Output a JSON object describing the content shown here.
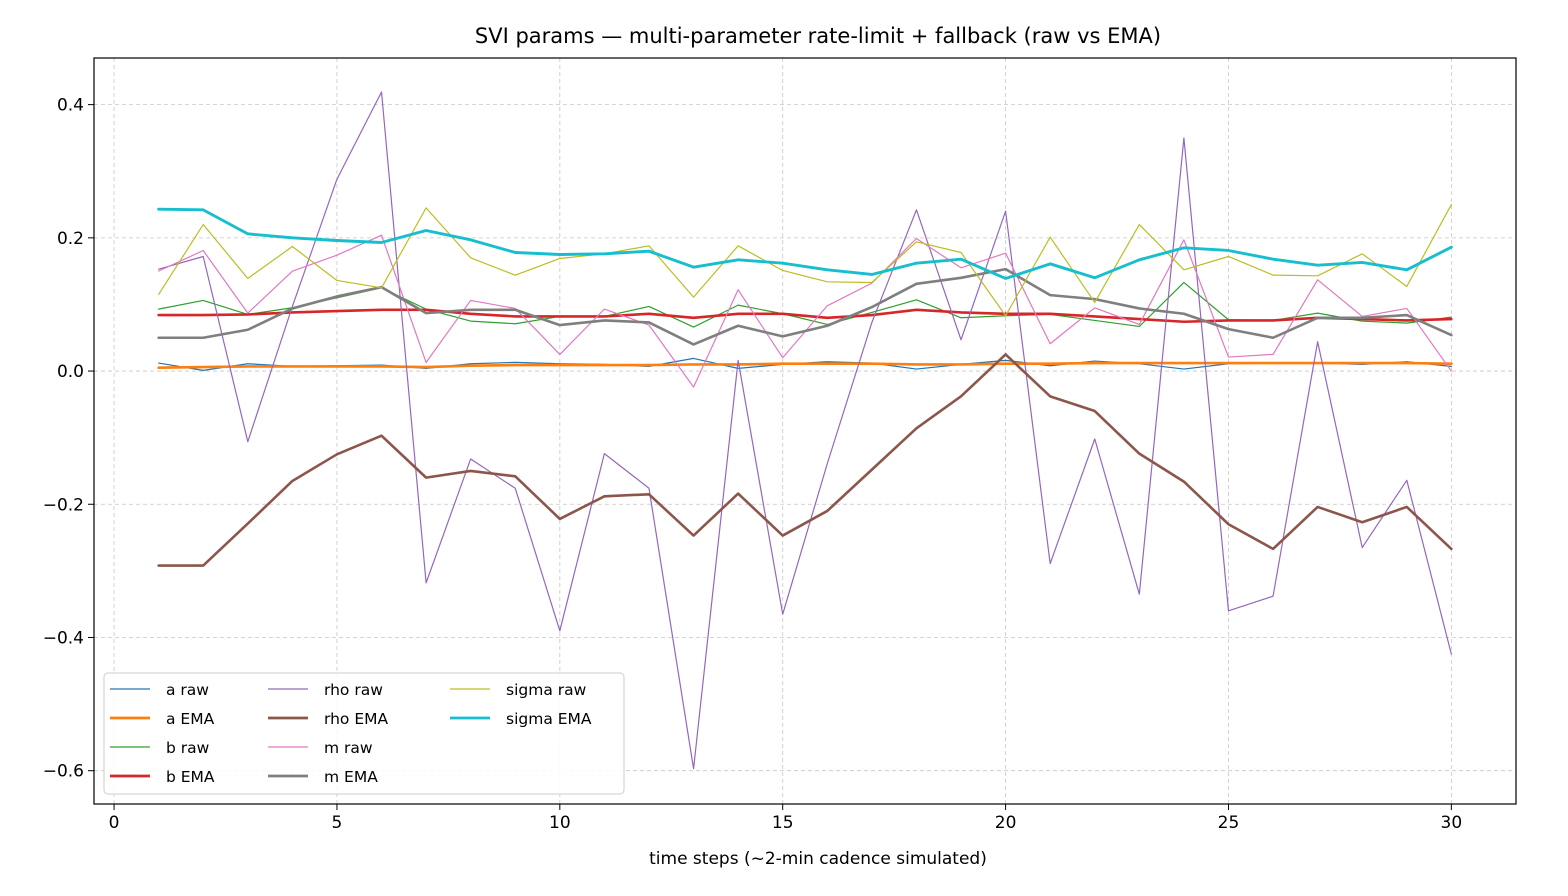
{
  "chart_data": {
    "type": "line",
    "title": "SVI params — multi-parameter rate-limit + fallback (raw vs EMA)",
    "xlabel": "time steps (~2-min cadence simulated)",
    "ylabel": "",
    "xlim": [
      -0.45,
      31.45
    ],
    "ylim": [
      -0.65,
      0.47
    ],
    "xticks": [
      0,
      5,
      10,
      15,
      20,
      25,
      30
    ],
    "yticks": [
      -0.6,
      -0.4,
      -0.2,
      0.0,
      0.2,
      0.4
    ],
    "ytick_labels": [
      "−0.6",
      "−0.4",
      "−0.2",
      "0.0",
      "0.2",
      "0.4"
    ],
    "xtick_labels": [
      "0",
      "5",
      "10",
      "15",
      "20",
      "25",
      "30"
    ],
    "grid": true,
    "legend_position": "lower-left",
    "x": [
      1,
      2,
      3,
      4,
      5,
      6,
      7,
      8,
      9,
      10,
      11,
      12,
      13,
      14,
      15,
      16,
      17,
      18,
      19,
      20,
      21,
      22,
      23,
      24,
      25,
      26,
      27,
      28,
      29,
      30
    ],
    "series": [
      {
        "name": "a raw",
        "color": "#1f77b4",
        "width": 1.2,
        "values": [
          0.012,
          0.001,
          0.011,
          0.007,
          0.008,
          0.009,
          0.004,
          0.011,
          0.013,
          0.011,
          0.01,
          0.007,
          0.019,
          0.004,
          0.01,
          0.014,
          0.012,
          0.003,
          0.01,
          0.016,
          0.008,
          0.015,
          0.011,
          0.003,
          0.011,
          0.012,
          0.012,
          0.01,
          0.014,
          0.007
        ]
      },
      {
        "name": "a EMA",
        "color": "#ff7f0e",
        "width": 2.6,
        "values": [
          0.005,
          0.006,
          0.007,
          0.007,
          0.007,
          0.007,
          0.006,
          0.008,
          0.009,
          0.009,
          0.009,
          0.009,
          0.01,
          0.01,
          0.011,
          0.011,
          0.011,
          0.01,
          0.01,
          0.011,
          0.011,
          0.012,
          0.012,
          0.012,
          0.012,
          0.012,
          0.012,
          0.012,
          0.012,
          0.011
        ]
      },
      {
        "name": "b raw",
        "color": "#2ca02c",
        "width": 1.2,
        "values": [
          0.093,
          0.106,
          0.085,
          0.095,
          0.11,
          0.125,
          0.093,
          0.075,
          0.071,
          0.082,
          0.082,
          0.097,
          0.066,
          0.099,
          0.086,
          0.07,
          0.088,
          0.107,
          0.08,
          0.083,
          0.085,
          0.076,
          0.067,
          0.133,
          0.077,
          0.076,
          0.087,
          0.075,
          0.072,
          0.081
        ]
      },
      {
        "name": "b EMA",
        "color": "#d62728",
        "width": 2.6,
        "values": [
          0.084,
          0.084,
          0.085,
          0.088,
          0.09,
          0.092,
          0.092,
          0.086,
          0.082,
          0.082,
          0.082,
          0.086,
          0.08,
          0.086,
          0.086,
          0.08,
          0.084,
          0.092,
          0.088,
          0.086,
          0.086,
          0.082,
          0.078,
          0.074,
          0.076,
          0.076,
          0.08,
          0.078,
          0.076,
          0.078
        ]
      },
      {
        "name": "rho raw",
        "color": "#9467bd",
        "width": 1.2,
        "values": [
          0.153,
          0.172,
          -0.106,
          0.097,
          0.288,
          0.419,
          -0.318,
          -0.132,
          -0.176,
          -0.39,
          -0.124,
          -0.176,
          -0.597,
          0.016,
          -0.365,
          -0.139,
          0.073,
          0.242,
          0.047,
          0.24,
          -0.289,
          -0.102,
          -0.335,
          0.35,
          -0.36,
          -0.338,
          0.044,
          -0.265,
          -0.164,
          -0.425
        ]
      },
      {
        "name": "rho EMA",
        "color": "#8c564b",
        "width": 2.6,
        "values": [
          -0.292,
          -0.292,
          -0.229,
          -0.165,
          -0.125,
          -0.097,
          -0.16,
          -0.15,
          -0.158,
          -0.222,
          -0.188,
          -0.185,
          -0.247,
          -0.184,
          -0.247,
          -0.21,
          -0.148,
          -0.086,
          -0.038,
          0.025,
          -0.038,
          -0.06,
          -0.124,
          -0.166,
          -0.23,
          -0.267,
          -0.204,
          -0.227,
          -0.204,
          -0.267
        ]
      },
      {
        "name": "m raw",
        "color": "#e377c2",
        "width": 1.2,
        "values": [
          0.15,
          0.181,
          0.087,
          0.15,
          0.174,
          0.204,
          0.013,
          0.106,
          0.094,
          0.025,
          0.093,
          0.069,
          -0.024,
          0.122,
          0.02,
          0.098,
          0.132,
          0.199,
          0.155,
          0.177,
          0.041,
          0.095,
          0.07,
          0.197,
          0.021,
          0.025,
          0.137,
          0.082,
          0.094,
          0.0
        ]
      },
      {
        "name": "m EMA",
        "color": "#7f7f7f",
        "width": 2.6,
        "values": [
          0.05,
          0.05,
          0.062,
          0.094,
          0.112,
          0.126,
          0.087,
          0.092,
          0.092,
          0.069,
          0.076,
          0.073,
          0.04,
          0.068,
          0.052,
          0.068,
          0.096,
          0.131,
          0.14,
          0.153,
          0.114,
          0.108,
          0.094,
          0.086,
          0.063,
          0.05,
          0.08,
          0.08,
          0.084,
          0.054
        ]
      },
      {
        "name": "sigma raw",
        "color": "#bcbd22",
        "width": 1.2,
        "values": [
          0.115,
          0.22,
          0.139,
          0.187,
          0.136,
          0.125,
          0.245,
          0.17,
          0.144,
          0.169,
          0.176,
          0.188,
          0.111,
          0.188,
          0.151,
          0.134,
          0.133,
          0.194,
          0.178,
          0.083,
          0.201,
          0.103,
          0.22,
          0.152,
          0.172,
          0.144,
          0.143,
          0.176,
          0.127,
          0.25
        ]
      },
      {
        "name": "sigma EMA",
        "color": "#17becf",
        "width": 2.9,
        "values": [
          0.243,
          0.242,
          0.206,
          0.2,
          0.196,
          0.193,
          0.211,
          0.197,
          0.178,
          0.175,
          0.176,
          0.18,
          0.156,
          0.167,
          0.162,
          0.152,
          0.145,
          0.162,
          0.168,
          0.139,
          0.161,
          0.14,
          0.167,
          0.185,
          0.181,
          0.168,
          0.159,
          0.163,
          0.152,
          0.186
        ]
      }
    ]
  }
}
